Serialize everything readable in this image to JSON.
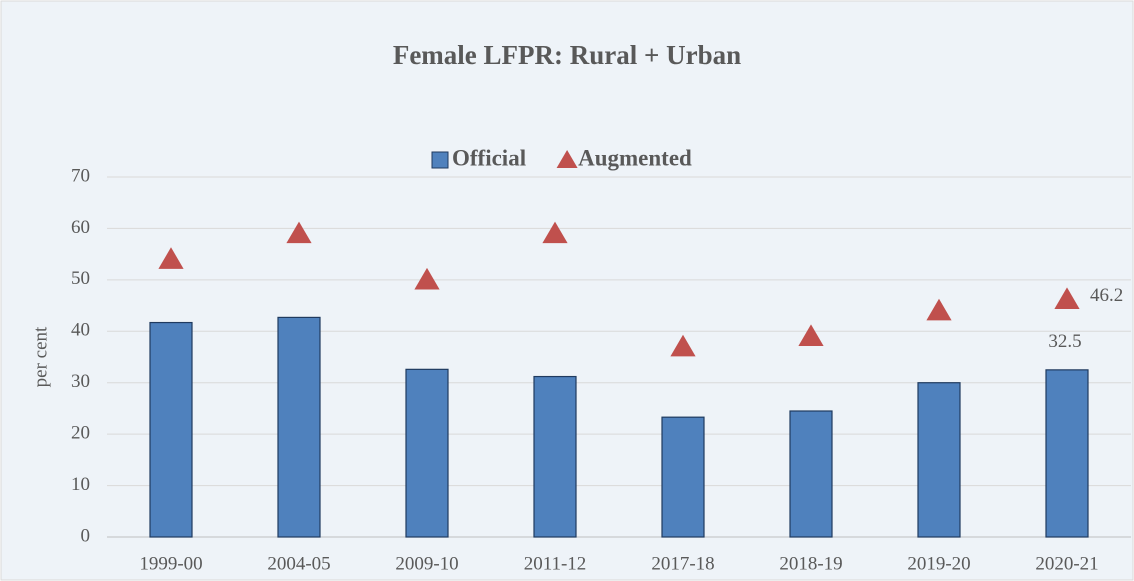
{
  "chart_data": {
    "type": "bar",
    "title": "Female LFPR: Rural + Urban",
    "y_label": "per cent",
    "categories": [
      "1999-00",
      "2004-05",
      "2009-10",
      "2011-12",
      "2017-18",
      "2018-19",
      "2019-20",
      "2020-21"
    ],
    "series": [
      {
        "name": "Official",
        "type": "bar",
        "color": "#4f81bd",
        "values": [
          41.7,
          42.7,
          32.6,
          31.2,
          23.3,
          24.5,
          30.0,
          32.5
        ],
        "value_labels": [
          null,
          null,
          null,
          null,
          null,
          null,
          null,
          "32.5"
        ]
      },
      {
        "name": "Augmented",
        "type": "triangle",
        "color": "#c0504d",
        "values": [
          54,
          59,
          50,
          59,
          37,
          39,
          44,
          46.2
        ],
        "value_labels": [
          null,
          null,
          null,
          null,
          null,
          null,
          null,
          "46.2"
        ]
      }
    ],
    "ylim": [
      0,
      70
    ],
    "yticks": [
      0,
      10,
      20,
      30,
      40,
      50,
      60,
      70
    ],
    "grid": true,
    "legend": "top"
  }
}
